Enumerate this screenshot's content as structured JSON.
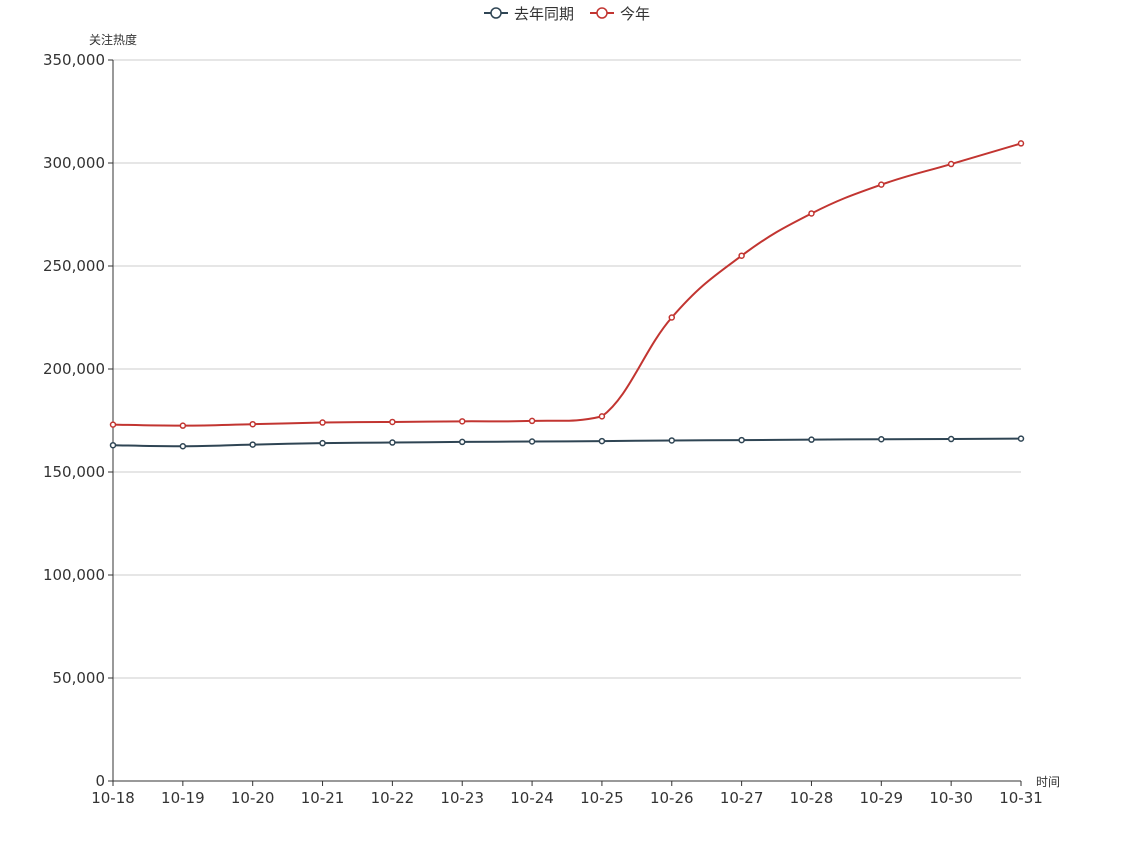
{
  "chart_data": {
    "type": "line",
    "title": "",
    "xlabel": "时间",
    "ylabel": "关注热度",
    "categories": [
      "10-18",
      "10-19",
      "10-20",
      "10-21",
      "10-22",
      "10-23",
      "10-24",
      "10-25",
      "10-26",
      "10-27",
      "10-28",
      "10-29",
      "10-30",
      "10-31"
    ],
    "ylim": [
      0,
      350000
    ],
    "yticks": [
      {
        "value": 0,
        "label": "0"
      },
      {
        "value": 50000,
        "label": "50,000"
      },
      {
        "value": 100000,
        "label": "100,000"
      },
      {
        "value": 150000,
        "label": "150,000"
      },
      {
        "value": 200000,
        "label": "200,000"
      },
      {
        "value": 250000,
        "label": "250,000"
      },
      {
        "value": 300000,
        "label": "300,000"
      },
      {
        "value": 350000,
        "label": "350,000"
      }
    ],
    "grid": true,
    "legend_position": "top-center",
    "series": [
      {
        "name": "去年同期",
        "color": "#2f4554",
        "values": [
          163000,
          162500,
          163300,
          164000,
          164300,
          164600,
          164800,
          165000,
          165300,
          165500,
          165700,
          165900,
          166000,
          166200
        ]
      },
      {
        "name": "今年",
        "color": "#c23531",
        "values": [
          173000,
          172500,
          173200,
          174000,
          174300,
          174600,
          174800,
          177000,
          225000,
          255000,
          275500,
          289500,
          299500,
          309500
        ]
      }
    ]
  }
}
